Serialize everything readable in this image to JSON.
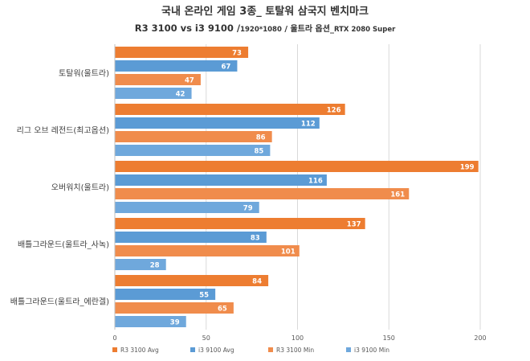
{
  "chart_data": {
    "type": "bar",
    "orientation": "horizontal",
    "title": "국내 온라인 게임 3종_ 토탈워 삼국지 벤치마크",
    "subtitle_parts": [
      "R3 3100 vs  i3 9100 /",
      "1920*1080",
      " / 울트라 옵션_",
      "RTX 2080 Super"
    ],
    "categories": [
      "토탈워(울트라)",
      "리그 오브 레전드(최고옵션)",
      "오버워치(울트라)",
      "배틀그라운드(울트라_사녹)",
      "배틀그라운드(울트라_에란겔)"
    ],
    "series": [
      {
        "name": "R3 3100 Avg",
        "color": "#ED7D31",
        "values": [
          73,
          126,
          199,
          137,
          84
        ]
      },
      {
        "name": "i3 9100 Avg",
        "color": "#5B9BD5",
        "values": [
          67,
          112,
          116,
          83,
          55
        ]
      },
      {
        "name": "R3 3100 Min",
        "color": "#F08C4C",
        "values": [
          47,
          86,
          161,
          101,
          65
        ]
      },
      {
        "name": "i3 9100 Min",
        "color": "#6FA8DC",
        "values": [
          42,
          85,
          79,
          28,
          39
        ]
      }
    ],
    "xlim": [
      0,
      200
    ],
    "xticks": [
      0,
      50,
      100,
      150,
      200
    ],
    "grid": true,
    "legend_position": "bottom"
  }
}
